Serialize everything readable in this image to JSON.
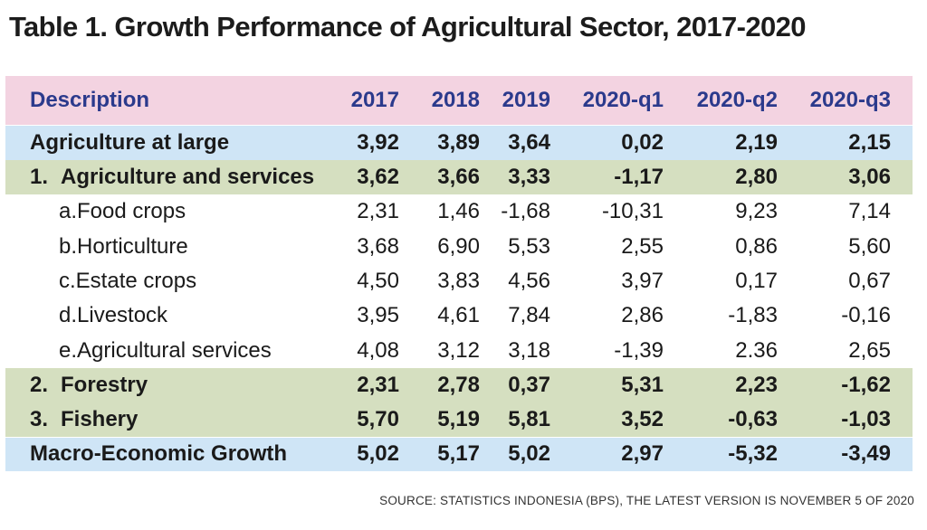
{
  "title": "Table 1. Growth Performance of Agricultural Sector, 2017-2020",
  "header": {
    "description": "Description",
    "columns": [
      "2017",
      "2018",
      "2019",
      "2020-q1",
      "2020-q2",
      "2020-q3"
    ]
  },
  "rows": [
    {
      "label": "Agriculture at large",
      "values": [
        "3,92",
        "3,89",
        "3,64",
        "0,02",
        "2,19",
        "2,15"
      ]
    },
    {
      "prefix": "1.",
      "label": "Agriculture and services",
      "values": [
        "3,62",
        "3,66",
        "3,33",
        "-1,17",
        "2,80",
        "3,06"
      ]
    },
    {
      "label": "a.Food crops",
      "values": [
        "2,31",
        "1,46",
        "-1,68",
        "-10,31",
        "9,23",
        "7,14"
      ]
    },
    {
      "label": "b.Horticulture",
      "values": [
        "3,68",
        "6,90",
        "5,53",
        "2,55",
        "0,86",
        "5,60"
      ]
    },
    {
      "label": "c.Estate crops",
      "values": [
        "4,50",
        "3,83",
        "4,56",
        "3,97",
        "0,17",
        "0,67"
      ]
    },
    {
      "label": "d.Livestock",
      "values": [
        "3,95",
        "4,61",
        "7,84",
        "2,86",
        "-1,83",
        "-0,16"
      ]
    },
    {
      "label": "e.Agricultural services",
      "values": [
        "4,08",
        "3,12",
        "3,18",
        "-1,39",
        "2.36",
        "2,65"
      ]
    },
    {
      "prefix": "2.",
      "label": "Forestry",
      "values": [
        "2,31",
        "2,78",
        "0,37",
        "5,31",
        "2,23",
        "-1,62"
      ]
    },
    {
      "prefix": "3.",
      "label": "Fishery",
      "values": [
        "5,70",
        "5,19",
        "5,81",
        "3,52",
        "-0,63",
        "-1,03"
      ]
    },
    {
      "label": "Macro-Economic Growth",
      "values": [
        "5,02",
        "5,17",
        "5,02",
        "2,97",
        "-5,32",
        "-3,49"
      ]
    }
  ],
  "source": "SOURCE: STATISTICS INDONESIA (BPS), THE LATEST VERSION IS NOVEMBER 5 OF 2020",
  "colors": {
    "header_bg": "#f3d3e1",
    "header_text": "#2b3a8c",
    "blue_row": "#cfe5f6",
    "green_row": "#d5dfc0"
  }
}
